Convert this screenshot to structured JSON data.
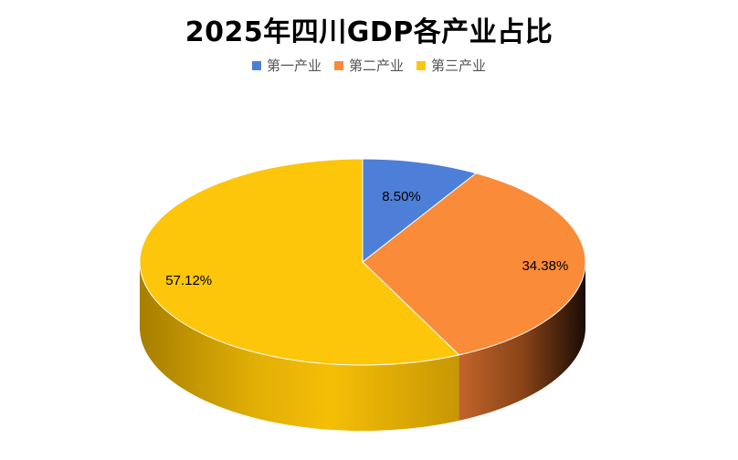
{
  "chart_data": {
    "type": "pie",
    "title": "2025年四川GDP各产业占比",
    "categories": [
      "第一产业",
      "第二产业",
      "第三产业"
    ],
    "values": [
      8.5,
      34.38,
      57.12
    ],
    "labels": [
      "8.50%",
      "34.38%",
      "57.12%"
    ],
    "colors": [
      "#4e7fd8",
      "#f98b39",
      "#fdc60b"
    ],
    "legend_position": "top",
    "style": "3d"
  }
}
